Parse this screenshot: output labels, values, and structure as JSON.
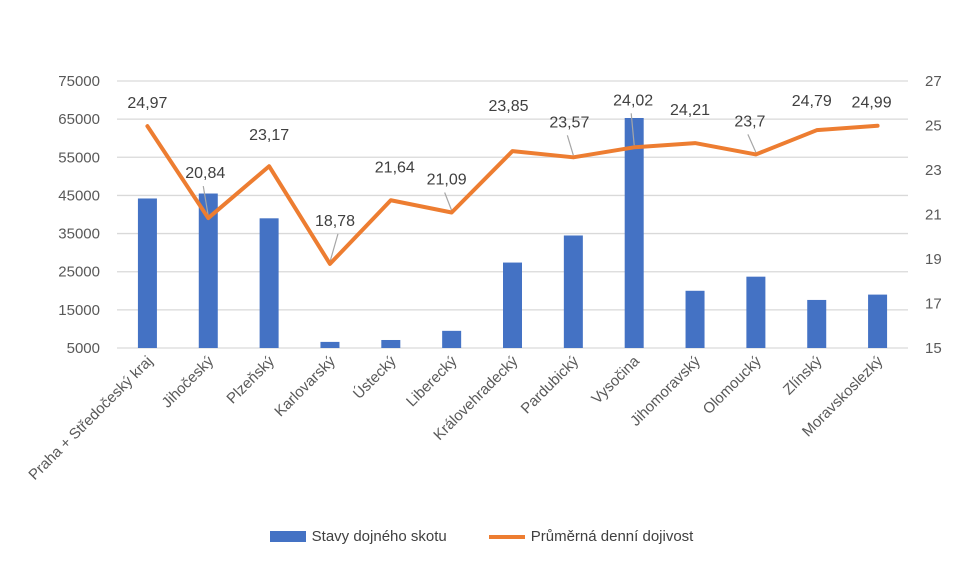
{
  "chart_data": {
    "type": "bar+line",
    "title": "",
    "categories": [
      "Praha + Středočeský kraj",
      "Jihočeský",
      "Plzeňský",
      "Karlovarský",
      "Ústecký",
      "Liberecký",
      "Královehradecký",
      "Pardubický",
      "Vysočina",
      "Jihomoravský",
      "Olomoucký",
      "Zlínský",
      "Moravskoslezký"
    ],
    "series": [
      {
        "name": "Stavy dojného skotu",
        "type": "bar",
        "axis": "left",
        "color": "#4472C4",
        "values": [
          44200,
          45500,
          39000,
          6600,
          7100,
          9500,
          27400,
          34500,
          65300,
          20000,
          23700,
          17600,
          19000
        ]
      },
      {
        "name": "Průměrná denní dojivost",
        "type": "line",
        "axis": "right",
        "color": "#ED7D31",
        "values": [
          24.97,
          20.84,
          23.17,
          18.78,
          21.64,
          21.09,
          23.85,
          23.57,
          24.02,
          24.21,
          23.7,
          24.79,
          24.99
        ],
        "labels": [
          "24,97",
          "20,84",
          "23,17",
          "18,78",
          "21,64",
          "21,09",
          "23,85",
          "23,57",
          "24,02",
          "24,21",
          "23,7",
          "24,79",
          "24,99"
        ]
      }
    ],
    "left_axis": {
      "min": 5000,
      "max": 75000,
      "step": 10000,
      "ticks": [
        "5000",
        "15000",
        "25000",
        "35000",
        "45000",
        "55000",
        "65000",
        "75000"
      ]
    },
    "right_axis": {
      "min": 15,
      "max": 27,
      "step": 2,
      "ticks": [
        "15",
        "17",
        "19",
        "21",
        "23",
        "25",
        "27"
      ]
    },
    "grid": true,
    "legend_position": "bottom"
  }
}
